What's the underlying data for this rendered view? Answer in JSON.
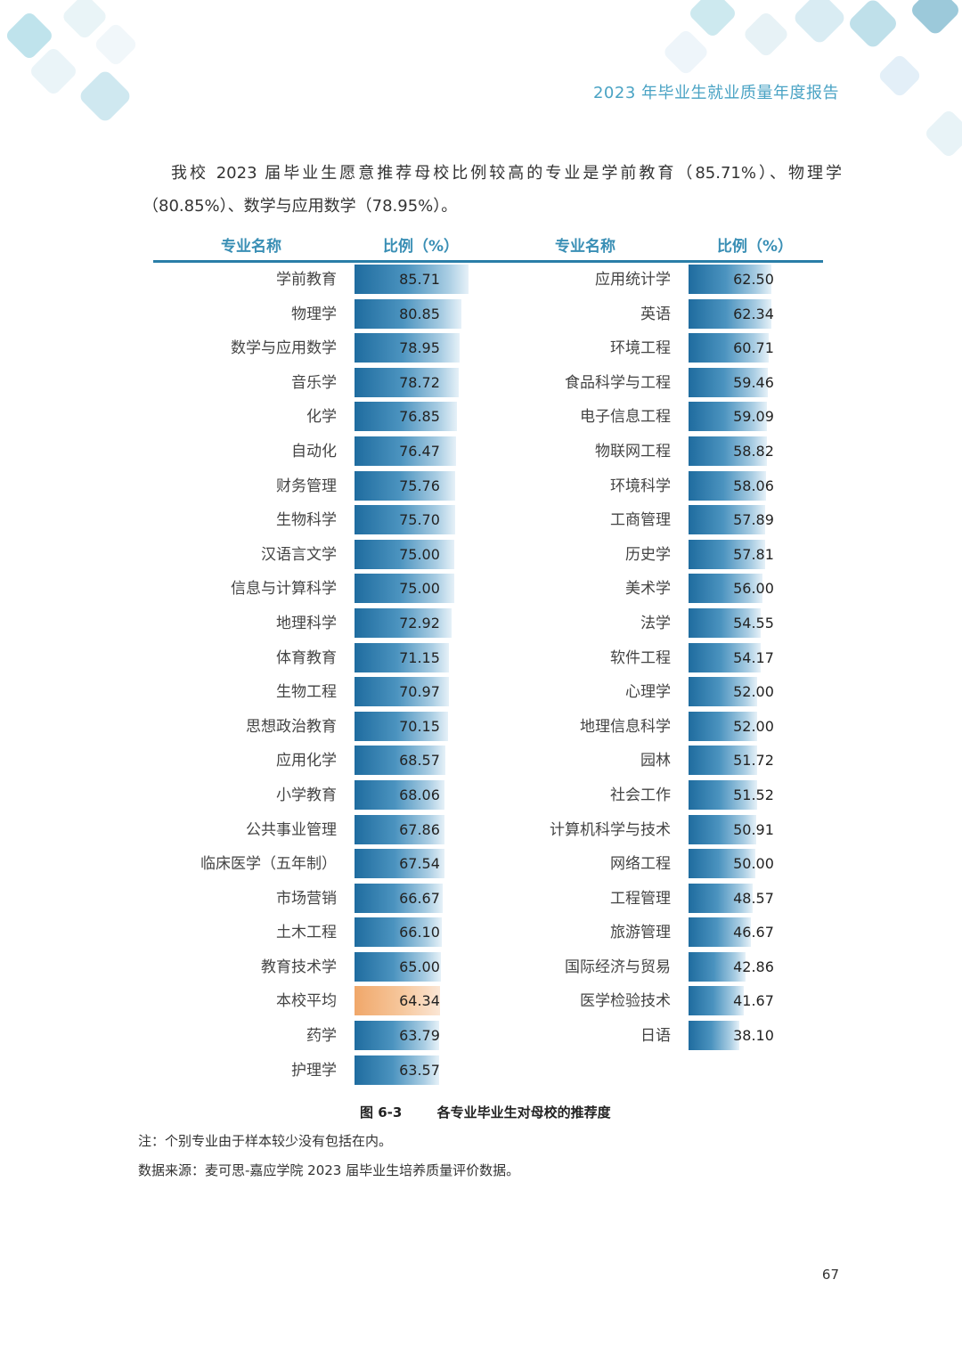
{
  "header": {
    "title": "2023 年毕业生就业质量年度报告"
  },
  "intro": "我校 2023 届毕业生愿意推荐母校比例较高的专业是学前教育（85.71%）、物理学（80.85%）、数学与应用数学（78.95%）。",
  "table": {
    "col_name_label": "专业名称",
    "col_value_label": "比例（%）"
  },
  "chart_data": {
    "type": "bar",
    "title": "各专业毕业生对母校的推荐度",
    "ylabel": "比例（%）",
    "highlight_category": "本校平均",
    "colors": {
      "bar": "#2a78a8",
      "average": "#f2ad74"
    },
    "series_left": [
      {
        "name": "学前教育",
        "value": 85.71
      },
      {
        "name": "物理学",
        "value": 80.85
      },
      {
        "name": "数学与应用数学",
        "value": 78.95
      },
      {
        "name": "音乐学",
        "value": 78.72
      },
      {
        "name": "化学",
        "value": 76.85
      },
      {
        "name": "自动化",
        "value": 76.47
      },
      {
        "name": "财务管理",
        "value": 75.76
      },
      {
        "name": "生物科学",
        "value": 75.7
      },
      {
        "name": "汉语言文学",
        "value": 75.0
      },
      {
        "name": "信息与计算科学",
        "value": 75.0
      },
      {
        "name": "地理科学",
        "value": 72.92
      },
      {
        "name": "体育教育",
        "value": 71.15
      },
      {
        "name": "生物工程",
        "value": 70.97
      },
      {
        "name": "思想政治教育",
        "value": 70.15
      },
      {
        "name": "应用化学",
        "value": 68.57
      },
      {
        "name": "小学教育",
        "value": 68.06
      },
      {
        "name": "公共事业管理",
        "value": 67.86
      },
      {
        "name": "临床医学（五年制）",
        "value": 67.54
      },
      {
        "name": "市场营销",
        "value": 66.67
      },
      {
        "name": "土木工程",
        "value": 66.1
      },
      {
        "name": "教育技术学",
        "value": 65.0
      },
      {
        "name": "本校平均",
        "value": 64.34
      },
      {
        "name": "药学",
        "value": 63.79
      },
      {
        "name": "护理学",
        "value": 63.57
      }
    ],
    "series_right": [
      {
        "name": "应用统计学",
        "value": 62.5
      },
      {
        "name": "英语",
        "value": 62.34
      },
      {
        "name": "环境工程",
        "value": 60.71
      },
      {
        "name": "食品科学与工程",
        "value": 59.46
      },
      {
        "name": "电子信息工程",
        "value": 59.09
      },
      {
        "name": "物联网工程",
        "value": 58.82
      },
      {
        "name": "环境科学",
        "value": 58.06
      },
      {
        "name": "工商管理",
        "value": 57.89
      },
      {
        "name": "历史学",
        "value": 57.81
      },
      {
        "name": "美术学",
        "value": 56.0
      },
      {
        "name": "法学",
        "value": 54.55
      },
      {
        "name": "软件工程",
        "value": 54.17
      },
      {
        "name": "心理学",
        "value": 52.0
      },
      {
        "name": "地理信息科学",
        "value": 52.0
      },
      {
        "name": "园林",
        "value": 51.72
      },
      {
        "name": "社会工作",
        "value": 51.52
      },
      {
        "name": "计算机科学与技术",
        "value": 50.91
      },
      {
        "name": "网络工程",
        "value": 50.0
      },
      {
        "name": "工程管理",
        "value": 48.57
      },
      {
        "name": "旅游管理",
        "value": 46.67
      },
      {
        "name": "国际经济与贸易",
        "value": 42.86
      },
      {
        "name": "医学检验技术",
        "value": 41.67
      },
      {
        "name": "日语",
        "value": 38.1
      }
    ]
  },
  "caption": {
    "number": "图 6-3",
    "text": "各专业毕业生对母校的推荐度"
  },
  "notes": {
    "note": "注：个别专业由于样本较少没有包括在内。",
    "source": "数据来源：麦可思-嘉应学院 2023 届毕业生培养质量评价数据。"
  },
  "page_number": "67"
}
